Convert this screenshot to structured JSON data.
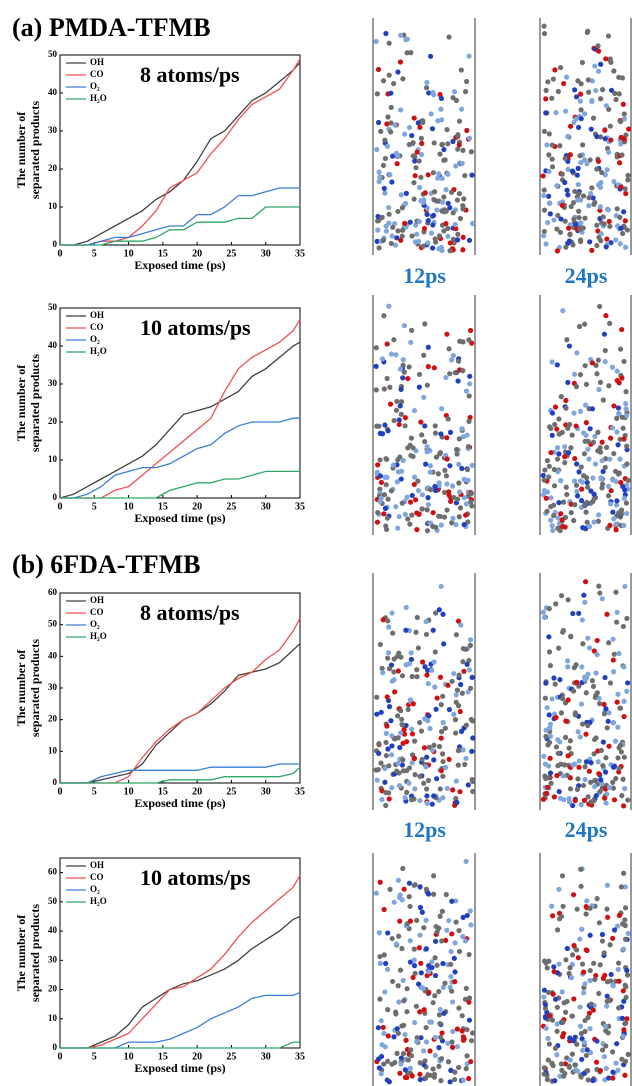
{
  "chart_data": [
    {
      "type": "line",
      "title": "(a) PMDA-TFMB",
      "annotation": "8 atoms/ps",
      "xlabel": "Exposed time (ps)",
      "ylabel": [
        "The number of",
        "separated products"
      ],
      "x": [
        0,
        2,
        4,
        6,
        8,
        10,
        12,
        14,
        16,
        18,
        20,
        22,
        24,
        26,
        28,
        30,
        32,
        34,
        35
      ],
      "xlim": [
        0,
        35
      ],
      "xticks": [
        0,
        5,
        10,
        15,
        20,
        25,
        30,
        35
      ],
      "ylim": [
        0,
        50
      ],
      "yticks": [
        0,
        10,
        20,
        30,
        40,
        50
      ],
      "series": [
        {
          "name": "OH",
          "color": "#404040",
          "values": [
            0,
            0,
            1,
            3,
            5,
            7,
            9,
            12,
            14,
            17,
            22,
            28,
            30,
            34,
            38,
            40,
            43,
            46,
            48
          ]
        },
        {
          "name": "CO",
          "color": "#f05050",
          "values": [
            0,
            0,
            0,
            1,
            1,
            2,
            5,
            9,
            15,
            17,
            19,
            24,
            28,
            33,
            37,
            39,
            41,
            46,
            49
          ]
        },
        {
          "name": "O₂",
          "color": "#3a7fd5",
          "values": [
            0,
            0,
            0,
            1,
            2,
            2,
            3,
            4,
            5,
            5,
            8,
            8,
            10,
            13,
            13,
            14,
            15,
            15,
            15
          ]
        },
        {
          "name": "H₂O",
          "color": "#2fa86a",
          "values": [
            0,
            0,
            0,
            0,
            1,
            1,
            1,
            2,
            4,
            4,
            6,
            6,
            6,
            7,
            7,
            10,
            10,
            10,
            10
          ]
        }
      ]
    },
    {
      "type": "line",
      "annotation": "10 atoms/ps",
      "xlabel": "Exposed time (ps)",
      "ylabel": [
        "The number of",
        "separated products"
      ],
      "x": [
        0,
        2,
        4,
        6,
        8,
        10,
        12,
        14,
        16,
        18,
        20,
        22,
        24,
        26,
        28,
        30,
        32,
        34,
        35
      ],
      "xlim": [
        0,
        35
      ],
      "xticks": [
        0,
        5,
        10,
        15,
        20,
        25,
        30,
        35
      ],
      "ylim": [
        0,
        50
      ],
      "yticks": [
        0,
        10,
        20,
        30,
        40,
        50
      ],
      "series": [
        {
          "name": "OH",
          "color": "#404040",
          "values": [
            0,
            1,
            3,
            5,
            7,
            9,
            11,
            14,
            18,
            22,
            23,
            24,
            26,
            28,
            32,
            34,
            37,
            40,
            41
          ]
        },
        {
          "name": "CO",
          "color": "#f05050",
          "values": [
            0,
            0,
            0,
            0,
            2,
            3,
            6,
            9,
            12,
            15,
            18,
            21,
            28,
            34,
            37,
            39,
            41,
            44,
            47
          ]
        },
        {
          "name": "O₂",
          "color": "#3a7fd5",
          "values": [
            0,
            0,
            1,
            3,
            6,
            7,
            8,
            8,
            9,
            11,
            13,
            14,
            17,
            19,
            20,
            20,
            20,
            21,
            21
          ]
        },
        {
          "name": "H₂O",
          "color": "#2fa86a",
          "values": [
            0,
            0,
            0,
            0,
            0,
            0,
            0,
            0,
            2,
            3,
            4,
            4,
            5,
            5,
            6,
            7,
            7,
            7,
            7
          ]
        }
      ]
    },
    {
      "type": "line",
      "title": "(b) 6FDA-TFMB",
      "annotation": "8 atoms/ps",
      "xlabel": "Exposed time (ps)",
      "ylabel": [
        "The number of",
        "separated products"
      ],
      "x": [
        0,
        2,
        4,
        6,
        8,
        10,
        12,
        14,
        16,
        18,
        20,
        22,
        24,
        26,
        28,
        30,
        32,
        34,
        35
      ],
      "xlim": [
        0,
        35
      ],
      "xticks": [
        0,
        5,
        10,
        15,
        20,
        25,
        30,
        35
      ],
      "ylim": [
        0,
        60
      ],
      "yticks": [
        0,
        10,
        20,
        30,
        40,
        50,
        60
      ],
      "series": [
        {
          "name": "OH",
          "color": "#404040",
          "values": [
            0,
            0,
            0,
            1,
            2,
            3,
            6,
            12,
            16,
            20,
            22,
            25,
            29,
            34,
            35,
            36,
            38,
            42,
            44
          ]
        },
        {
          "name": "CO",
          "color": "#f05050",
          "values": [
            0,
            0,
            0,
            0,
            0,
            2,
            8,
            13,
            17,
            20,
            22,
            26,
            30,
            33,
            35,
            39,
            42,
            48,
            52
          ]
        },
        {
          "name": "O₂",
          "color": "#3a7fd5",
          "values": [
            0,
            0,
            0,
            2,
            3,
            4,
            4,
            4,
            4,
            4,
            4,
            5,
            5,
            5,
            5,
            5,
            6,
            6,
            6
          ]
        },
        {
          "name": "H₂O",
          "color": "#2fa86a",
          "values": [
            0,
            0,
            0,
            0,
            0,
            0,
            0,
            0,
            1,
            1,
            1,
            1,
            2,
            2,
            2,
            2,
            2,
            3,
            5
          ]
        }
      ]
    },
    {
      "type": "line",
      "annotation": "10 atoms/ps",
      "xlabel": "Exposed time (ps)",
      "ylabel": [
        "The number of",
        "separated products"
      ],
      "x": [
        0,
        2,
        4,
        6,
        8,
        10,
        12,
        14,
        16,
        18,
        20,
        22,
        24,
        26,
        28,
        30,
        32,
        34,
        35
      ],
      "xlim": [
        0,
        35
      ],
      "xticks": [
        0,
        5,
        10,
        15,
        20,
        25,
        30,
        35
      ],
      "ylim": [
        0,
        65
      ],
      "yticks": [
        0,
        10,
        20,
        30,
        40,
        50,
        60
      ],
      "series": [
        {
          "name": "OH",
          "color": "#404040",
          "values": [
            0,
            0,
            0,
            2,
            4,
            8,
            14,
            17,
            20,
            22,
            23,
            25,
            27,
            30,
            34,
            37,
            40,
            44,
            45
          ]
        },
        {
          "name": "CO",
          "color": "#f05050",
          "values": [
            0,
            0,
            0,
            1,
            3,
            5,
            10,
            15,
            20,
            21,
            24,
            27,
            32,
            38,
            43,
            47,
            51,
            55,
            59
          ]
        },
        {
          "name": "O₂",
          "color": "#3a7fd5",
          "values": [
            0,
            0,
            0,
            0,
            0,
            2,
            2,
            2,
            3,
            5,
            7,
            10,
            12,
            14,
            17,
            18,
            18,
            18,
            19
          ]
        },
        {
          "name": "H₂O",
          "color": "#2fa86a",
          "values": [
            0,
            0,
            0,
            0,
            0,
            0,
            0,
            0,
            0,
            0,
            0,
            0,
            0,
            0,
            0,
            0,
            0,
            2,
            2
          ]
        }
      ]
    }
  ],
  "snapshots": [
    {
      "labels": [
        "12ps",
        "24ps"
      ]
    },
    {
      "labels": [
        "12ps",
        "24ps"
      ]
    }
  ]
}
